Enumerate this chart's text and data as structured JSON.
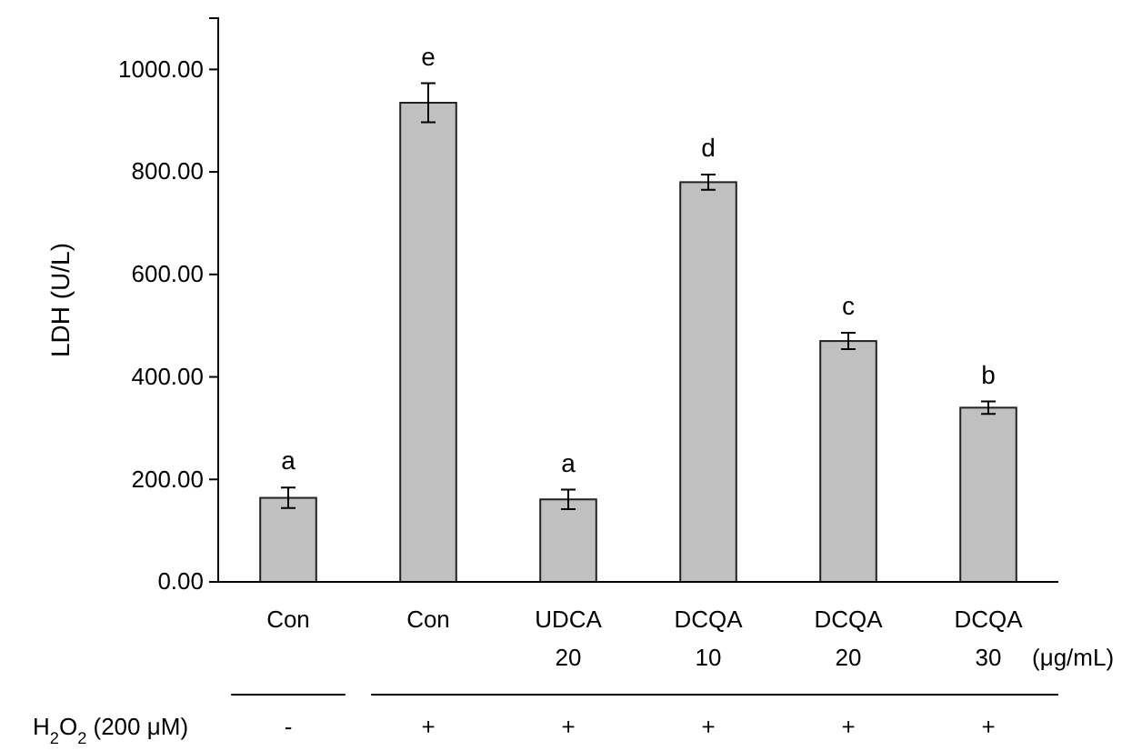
{
  "chart_data": {
    "type": "bar",
    "ylabel": "LDH (U/L)",
    "categories": [
      "Con",
      "Con",
      "UDCA\n20",
      "DCQA\n10",
      "DCQA\n20",
      "DCQA\n30"
    ],
    "values": [
      164,
      935,
      161,
      780,
      470,
      340
    ],
    "errors": [
      20,
      38,
      19,
      15,
      16,
      12
    ],
    "value_labels": [
      "a",
      "e",
      "a",
      "d",
      "c",
      "b"
    ],
    "color": "#c0c0c0",
    "ylim": [
      0,
      1100
    ],
    "yticks": [
      {
        "value": 0,
        "label": "0.00"
      },
      {
        "value": 200,
        "label": "200.00"
      },
      {
        "value": 400,
        "label": "400.00"
      },
      {
        "value": 600,
        "label": "600.00"
      },
      {
        "value": 800,
        "label": "800.00"
      },
      {
        "value": 1000,
        "label": "1000.00"
      }
    ],
    "grid": false,
    "annotations": [
      "(μg/mL)",
      "H$_{2}$O$_{2}$ (200 μM)",
      "-",
      "+",
      "+",
      "+",
      "+",
      "+"
    ]
  }
}
